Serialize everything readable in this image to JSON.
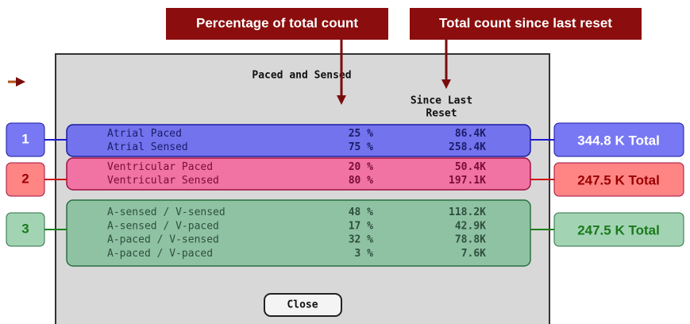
{
  "callouts": [
    "Percentage of total count",
    "Total count since last reset"
  ],
  "dialog": {
    "title": "Paced and Sensed",
    "column_header": [
      "Since Last",
      "Reset"
    ],
    "button": "Close"
  },
  "groups": [
    {
      "number": "1",
      "total": "344.8 K Total",
      "rows": [
        {
          "label": "Atrial Paced",
          "percent": "25 %",
          "count": "86.4K"
        },
        {
          "label": "Atrial Sensed",
          "percent": "75 %",
          "count": "258.4K"
        }
      ]
    },
    {
      "number": "2",
      "total": "247.5 K Total",
      "rows": [
        {
          "label": "Ventricular Paced",
          "percent": "20 %",
          "count": "50.4K"
        },
        {
          "label": "Ventricular Sensed",
          "percent": "80 %",
          "count": "197.1K"
        }
      ]
    },
    {
      "number": "3",
      "total": "247.5 K Total",
      "rows": [
        {
          "label": "A-sensed / V-sensed",
          "percent": "48 %",
          "count": "118.2K"
        },
        {
          "label": "A-sensed / V-paced",
          "percent": "17 %",
          "count": "42.9K"
        },
        {
          "label": "A-paced / V-sensed",
          "percent": "32 %",
          "count": "78.8K"
        },
        {
          "label": "A-paced / V-paced",
          "percent": "3 %",
          "count": "7.6K"
        }
      ]
    }
  ]
}
